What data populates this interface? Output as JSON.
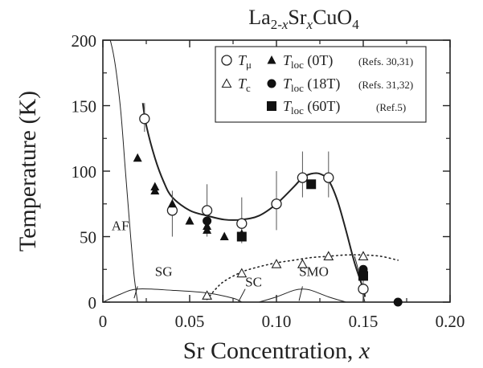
{
  "chart_data": {
    "type": "scatter",
    "title": {
      "base1": "La",
      "sub1": "2-",
      "subItalic": "x",
      "base2": "Sr",
      "italic": "x",
      "base3": "CuO",
      "sub2": "4"
    },
    "xlabel": {
      "text": "Sr Concentration, ",
      "italic": "x"
    },
    "ylabel": "Temperature (K)",
    "xlim": [
      0,
      0.2
    ],
    "ylim": [
      0,
      200
    ],
    "xticks": [
      0,
      0.05,
      0.1,
      0.15,
      0.2
    ],
    "xtick_labels": [
      "0",
      "0.05",
      "0.10",
      "0.15",
      "0.20"
    ],
    "yticks": [
      0,
      50,
      100,
      150,
      200
    ],
    "ytick_labels": [
      "0",
      "50",
      "100",
      "150",
      "200"
    ],
    "grid": false,
    "legend_position": "top-right",
    "legend": [
      {
        "marker": "open-circle",
        "label": "T",
        "sub": "μ",
        "ref": ""
      },
      {
        "marker": "open-triangle",
        "label": "T",
        "sub": "c",
        "ref": ""
      },
      {
        "marker": "filled-triangle",
        "label": "T",
        "sub": "loc",
        "field": " (0T)",
        "ref": "(Refs. 30,31)"
      },
      {
        "marker": "filled-circle",
        "label": "T",
        "sub": "loc",
        "field": " (18T)",
        "ref": "(Refs. 31,32)"
      },
      {
        "marker": "filled-square",
        "label": "T",
        "sub": "loc",
        "field": " (60T)",
        "ref": "(Ref.5)"
      }
    ],
    "series": [
      {
        "marker": "open-circle",
        "points": [
          {
            "x": 0.024,
            "y": 140,
            "err_low": 130,
            "err_high": 152
          },
          {
            "x": 0.04,
            "y": 70,
            "err_low": 50,
            "err_high": 85
          },
          {
            "x": 0.06,
            "y": 70,
            "err_low": 50,
            "err_high": 90
          },
          {
            "x": 0.08,
            "y": 60,
            "err_low": 45,
            "err_high": 80
          },
          {
            "x": 0.1,
            "y": 75,
            "err_low": 55,
            "err_high": 100
          },
          {
            "x": 0.115,
            "y": 95,
            "err_low": 80,
            "err_high": 115
          },
          {
            "x": 0.13,
            "y": 95,
            "err_low": 80,
            "err_high": 115
          },
          {
            "x": 0.15,
            "y": 10,
            "err_low": 2,
            "err_high": 18
          }
        ]
      },
      {
        "marker": "open-triangle",
        "points": [
          {
            "x": 0.06,
            "y": 5
          },
          {
            "x": 0.08,
            "y": 22
          },
          {
            "x": 0.1,
            "y": 29
          },
          {
            "x": 0.115,
            "y": 29
          },
          {
            "x": 0.13,
            "y": 35
          },
          {
            "x": 0.15,
            "y": 35
          }
        ]
      },
      {
        "marker": "filled-triangle",
        "points": [
          {
            "x": 0.02,
            "y": 110
          },
          {
            "x": 0.03,
            "y": 85
          },
          {
            "x": 0.03,
            "y": 88
          },
          {
            "x": 0.04,
            "y": 75
          },
          {
            "x": 0.05,
            "y": 62
          },
          {
            "x": 0.06,
            "y": 58
          },
          {
            "x": 0.06,
            "y": 55
          },
          {
            "x": 0.07,
            "y": 50
          },
          {
            "x": 0.08,
            "y": 52
          }
        ]
      },
      {
        "marker": "filled-circle",
        "points": [
          {
            "x": 0.06,
            "y": 62
          },
          {
            "x": 0.15,
            "y": 25
          },
          {
            "x": 0.15,
            "y": 22
          },
          {
            "x": 0.17,
            "y": 0
          }
        ]
      },
      {
        "marker": "filled-square",
        "points": [
          {
            "x": 0.08,
            "y": 50
          },
          {
            "x": 0.12,
            "y": 90
          },
          {
            "x": 0.15,
            "y": 20
          }
        ]
      }
    ],
    "curves": [
      {
        "name": "T_mu guide",
        "style": "solid",
        "points": [
          [
            0.023,
            152
          ],
          [
            0.025,
            135
          ],
          [
            0.03,
            110
          ],
          [
            0.035,
            92
          ],
          [
            0.04,
            80
          ],
          [
            0.05,
            70
          ],
          [
            0.06,
            66
          ],
          [
            0.07,
            63
          ],
          [
            0.08,
            63
          ],
          [
            0.09,
            66
          ],
          [
            0.1,
            75
          ],
          [
            0.11,
            88
          ],
          [
            0.115,
            95
          ],
          [
            0.12,
            98
          ],
          [
            0.125,
            98
          ],
          [
            0.13,
            93
          ],
          [
            0.135,
            78
          ],
          [
            0.14,
            55
          ],
          [
            0.145,
            30
          ],
          [
            0.15,
            10
          ],
          [
            0.151,
            4
          ]
        ]
      },
      {
        "name": "SC dome",
        "style": "dotted",
        "points": [
          [
            0.06,
            2
          ],
          [
            0.065,
            10
          ],
          [
            0.07,
            16
          ],
          [
            0.08,
            23
          ],
          [
            0.09,
            27
          ],
          [
            0.1,
            30
          ],
          [
            0.11,
            32
          ],
          [
            0.12,
            34
          ],
          [
            0.13,
            35
          ],
          [
            0.14,
            36
          ],
          [
            0.15,
            36
          ],
          [
            0.16,
            35
          ],
          [
            0.17,
            32
          ]
        ]
      },
      {
        "name": "AF boundary",
        "style": "solid",
        "points": [
          [
            0.0,
            220
          ],
          [
            0.006,
            190
          ],
          [
            0.01,
            150
          ],
          [
            0.013,
            100
          ],
          [
            0.016,
            50
          ],
          [
            0.018,
            20
          ],
          [
            0.02,
            0
          ]
        ]
      },
      {
        "name": "SG dome",
        "style": "solid",
        "points": [
          [
            0.0,
            0
          ],
          [
            0.01,
            6
          ],
          [
            0.02,
            10
          ],
          [
            0.04,
            9
          ],
          [
            0.06,
            7
          ],
          [
            0.075,
            3
          ],
          [
            0.08,
            0
          ]
        ]
      },
      {
        "name": "SMO dome",
        "style": "solid",
        "points": [
          [
            0.09,
            0
          ],
          [
            0.1,
            4
          ],
          [
            0.11,
            9
          ],
          [
            0.115,
            10
          ],
          [
            0.12,
            9
          ],
          [
            0.13,
            4
          ],
          [
            0.14,
            0
          ]
        ]
      },
      {
        "name": "Tc boundary",
        "style": "solid",
        "points": [
          [
            0.145,
            35
          ],
          [
            0.148,
            20
          ],
          [
            0.15,
            5
          ],
          [
            0.151,
            0
          ]
        ]
      }
    ],
    "region_labels": [
      {
        "text": "AF",
        "x": 0.005,
        "y": 55
      },
      {
        "text": "SG",
        "x": 0.03,
        "y": 20
      },
      {
        "text": "SC",
        "x": 0.082,
        "y": 12
      },
      {
        "text": "SMO",
        "x": 0.113,
        "y": 20
      }
    ],
    "region_arrows": [
      {
        "from": [
          0.02,
          12
        ],
        "to": [
          0.018,
          3
        ]
      },
      {
        "from": [
          0.115,
          12
        ],
        "to": [
          0.113,
          1
        ]
      },
      {
        "from": [
          0.082,
          10
        ],
        "to": [
          0.078,
          0
        ]
      }
    ]
  }
}
